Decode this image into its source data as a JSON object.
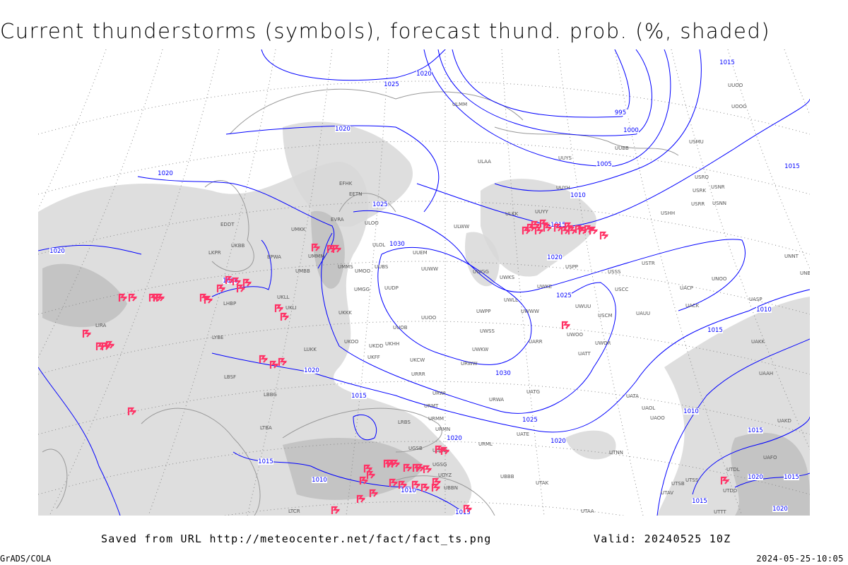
{
  "title": "Current thunderstorms (symbols), forecast thund. prob. (%, shaded)",
  "footer": {
    "saved_from": "Saved from URL http://meteocenter.net/fact/fact_ts.png",
    "valid": "Valid: 20240525 10Z",
    "credit": "GrADS/COLA",
    "timestamp": "2024-05-25-10:05"
  },
  "colors": {
    "isobar": "#0000ff",
    "thunderstorm_symbol": "#ff3366",
    "shading": "#d8d8d8",
    "coastline": "#999999"
  },
  "isobar_labels": [
    "1020",
    "1025",
    "1020",
    "995",
    "1000",
    "1005",
    "1010",
    "1015",
    "1015",
    "1020",
    "1020",
    "1025",
    "1030",
    "1015",
    "1020",
    "1025",
    "1020",
    "1010",
    "1015",
    "1020",
    "1030",
    "1015",
    "1025",
    "1020",
    "1020",
    "1015",
    "1010",
    "1010",
    "1015",
    "1010",
    "1015",
    "1020",
    "1015",
    "1015",
    "1020"
  ],
  "stations": [
    "ULMM",
    "UUYS",
    "ULAA",
    "UUYH",
    "USRO",
    "USRK",
    "USNR",
    "USRR",
    "USNN",
    "USHH",
    "ULKK",
    "UUYY",
    "ULOO",
    "ULWW",
    "ULOL",
    "UUEM",
    "USPP",
    "USSS",
    "USTR",
    "UMMS",
    "UMOO",
    "UUBS",
    "UUWW",
    "UWGG",
    "UWKS",
    "UUDP",
    "UMGG",
    "UWKE",
    "USCC",
    "UACP",
    "UNOO",
    "UWLL",
    "UWUU",
    "UACK",
    "UKLL",
    "UKKK",
    "UUOO",
    "UWPP",
    "UWWW",
    "USCM",
    "UAUU",
    "UWSS",
    "UWOO",
    "UWOR",
    "UATT",
    "UARR",
    "UKHH",
    "UKDD",
    "UKOO",
    "UWKW",
    "URWW",
    "UKFF",
    "UKCW",
    "URRR",
    "LUKK",
    "LIRA",
    "LYBE",
    "LBSF",
    "LBBG",
    "URWI",
    "UATG",
    "URWA",
    "UATA",
    "UAOL",
    "UAOO",
    "URMT",
    "URMM",
    "URMN",
    "UATE",
    "URML",
    "UGSB",
    "UGKO",
    "UBBB",
    "UTAK",
    "UTNN",
    "UTAA",
    "UGSG",
    "UBBN",
    "UDYZ",
    "LTBA",
    "LRBS",
    "UUOB",
    "EFHK",
    "EETN",
    "EVRA",
    "UMMM",
    "UMKK",
    "EPWA",
    "UKBB",
    "UKLI",
    "LHBP",
    "LKPR",
    "EDDT",
    "UUOO",
    "UOOO",
    "USMU",
    "UUBB",
    "UNNT",
    "UNBB",
    "UASP",
    "UAKK",
    "UAAH",
    "UAKD",
    "UTSS",
    "UTDL",
    "UTSB",
    "UTAV",
    "UTDD",
    "UAFO",
    "UTTT",
    "LTCR",
    "UMBB"
  ]
}
